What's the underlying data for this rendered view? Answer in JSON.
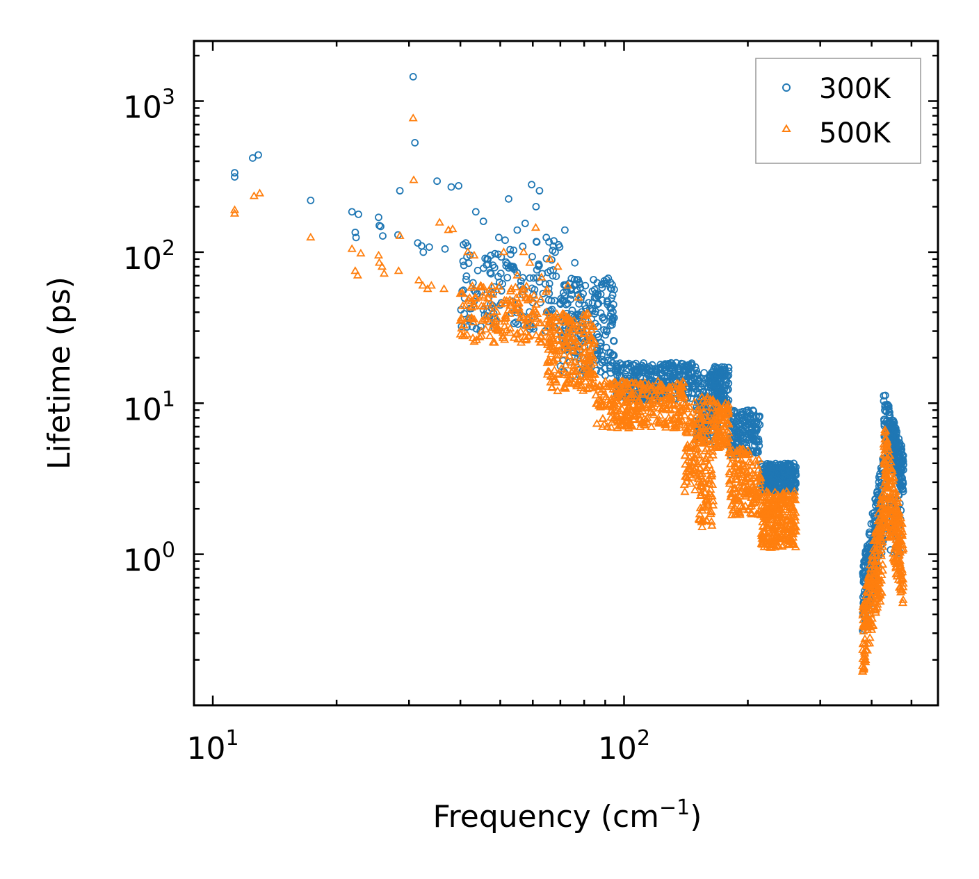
{
  "chart_data": {
    "type": "scatter",
    "xscale": "log",
    "yscale": "log",
    "xlim": [
      9,
      580
    ],
    "ylim": [
      0.1,
      2500
    ],
    "xlabel": "Frequency (cm",
    "xlabel_sup": "−1",
    "xlabel_close": ")",
    "ylabel": "Lifetime (ps)",
    "legend_position": "top-right",
    "x_ticks": [
      {
        "value": 10,
        "base": "10",
        "exp": "1"
      },
      {
        "value": 100,
        "base": "10",
        "exp": "2"
      }
    ],
    "y_ticks": [
      {
        "value": 1,
        "base": "10",
        "exp": "0"
      },
      {
        "value": 10,
        "base": "10",
        "exp": "1"
      },
      {
        "value": 100,
        "base": "10",
        "exp": "2"
      },
      {
        "value": 1000,
        "base": "10",
        "exp": "3"
      }
    ],
    "series": [
      {
        "name": "300K",
        "marker": "circle",
        "color": "#1f77b4",
        "x": [
          11.3,
          11.3,
          12.5,
          12.9,
          17.3,
          21.8,
          22.2,
          22.3,
          22.6,
          25.3,
          25.4,
          25.6,
          25.9,
          28.2,
          28.5,
          30.7,
          31.0,
          31.5,
          32.2,
          32.5,
          33.6,
          35.1,
          36.7,
          38.0,
          39.6,
          41.5,
          43.6,
          45.5,
          47.4,
          49.6,
          51.4,
          52.4,
          55.0,
          57.5,
          59.6,
          61.1,
          62.3,
          64.7,
          68.0,
          71.8,
          75.9,
          80.5,
          84.8,
          88.6,
          91.2
        ],
        "y": [
          335,
          315,
          420,
          440,
          220,
          185,
          135,
          125,
          178,
          170,
          150,
          148,
          128,
          130,
          255,
          1450,
          530,
          115,
          110,
          100,
          108,
          295,
          105,
          270,
          275,
          93,
          185,
          160,
          95,
          125,
          120,
          225,
          140,
          155,
          280,
          200,
          255,
          125,
          100,
          140,
          85,
          60,
          50,
          48,
          45
        ],
        "bands": [
          {
            "x0": 40,
            "x1": 70,
            "lo": 30,
            "hi": 120,
            "n": 160,
            "steep": 0.0
          },
          {
            "x0": 70,
            "x1": 95,
            "lo": 15,
            "hi": 70,
            "n": 220,
            "steep": 0.0
          },
          {
            "x0": 95,
            "x1": 150,
            "lo": 10.5,
            "hi": 18.5,
            "n": 320,
            "steep": 0.0
          },
          {
            "x0": 150,
            "x1": 170,
            "lo": 5.5,
            "hi": 16,
            "n": 160,
            "steep": 0.0
          },
          {
            "x0": 165,
            "x1": 180,
            "lo": 9,
            "hi": 17.5,
            "n": 100,
            "steep": 0.0
          },
          {
            "x0": 180,
            "x1": 215,
            "lo": 4.5,
            "hi": 9,
            "n": 160,
            "steep": 0.0
          },
          {
            "x0": 215,
            "x1": 262,
            "lo": 2.6,
            "hi": 4.0,
            "n": 260,
            "steep": 0.0
          },
          {
            "x0": 380,
            "x1": 428,
            "lo": 0.3,
            "hi": 5.0,
            "n": 220,
            "steep": 1.0
          },
          {
            "x0": 428,
            "x1": 478,
            "lo": 2.5,
            "hi": 12.5,
            "n": 220,
            "steep": -1.0
          },
          {
            "x0": 440,
            "x1": 472,
            "lo": 1.0,
            "hi": 2.5,
            "n": 40,
            "steep": 0.0
          }
        ]
      },
      {
        "name": "500K",
        "marker": "triangle",
        "color": "#ff7f0e",
        "x": [
          11.3,
          11.3,
          12.6,
          13.0,
          17.3,
          21.8,
          22.2,
          22.5,
          22.9,
          25.3,
          25.4,
          25.8,
          26.1,
          28.3,
          28.5,
          30.7,
          30.8,
          31.7,
          32.4,
          33.3,
          34.0,
          35.6,
          36.5,
          37.4,
          38.3,
          40.0,
          41.7,
          43.2,
          45.0,
          47.0,
          49.0,
          51.0,
          53.0,
          55.0,
          57.0,
          59.0,
          61.0,
          63.0,
          66.0,
          69.0,
          73.0,
          77.5
        ],
        "y": [
          190,
          180,
          235,
          245,
          125,
          105,
          75,
          70,
          98,
          95,
          85,
          80,
          72,
          75,
          128,
          770,
          300,
          65,
          60,
          57,
          60,
          157,
          57,
          140,
          142,
          53,
          100,
          95,
          44,
          56,
          56,
          100,
          55,
          70,
          100,
          85,
          145,
          68,
          90,
          80,
          60,
          50
        ],
        "bands": [
          {
            "x0": 40,
            "x1": 65,
            "lo": 25,
            "hi": 60,
            "n": 160,
            "steep": 0.0
          },
          {
            "x0": 65,
            "x1": 85,
            "lo": 12,
            "hi": 40,
            "n": 220,
            "steep": 0.0
          },
          {
            "x0": 85,
            "x1": 140,
            "lo": 6.8,
            "hi": 14,
            "n": 320,
            "steep": 0.0
          },
          {
            "x0": 140,
            "x1": 165,
            "lo": 2.5,
            "hi": 11,
            "n": 160,
            "steep": 0.0
          },
          {
            "x0": 152,
            "x1": 165,
            "lo": 1.5,
            "hi": 3,
            "n": 40,
            "steep": 0.0
          },
          {
            "x0": 165,
            "x1": 180,
            "lo": 5,
            "hi": 10,
            "n": 90,
            "steep": 0.0
          },
          {
            "x0": 180,
            "x1": 215,
            "lo": 1.8,
            "hi": 5,
            "n": 160,
            "steep": 0.0
          },
          {
            "x0": 215,
            "x1": 262,
            "lo": 1.1,
            "hi": 2.6,
            "n": 260,
            "steep": 0.0
          },
          {
            "x0": 380,
            "x1": 428,
            "lo": 0.16,
            "hi": 3.0,
            "n": 220,
            "steep": 1.0
          },
          {
            "x0": 428,
            "x1": 478,
            "lo": 0.45,
            "hi": 8.0,
            "n": 220,
            "steep": -1.0
          }
        ]
      }
    ]
  }
}
